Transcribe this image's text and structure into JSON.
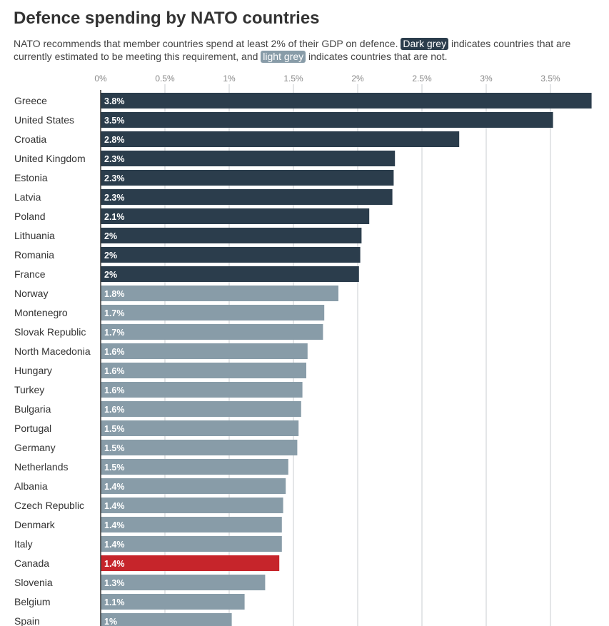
{
  "title": "Defence spending by NATO countries",
  "subtitle": {
    "part1": "NATO recommends that member countries spend at least 2% of their GDP on defence.",
    "dark_chip": "Dark grey",
    "part2": "indicates countries that are currently estimated to be meeting this requirement, and",
    "light_chip": "light grey",
    "part3": "indicates countries that are not."
  },
  "colors": {
    "dark": "#2b3d4c",
    "light": "#889ca8",
    "highlight": "#c6252b",
    "grid": "#c8cdd2",
    "axis": "#333333"
  },
  "chart_data": {
    "type": "bar",
    "orientation": "horizontal",
    "title": "Defence spending by NATO countries",
    "xlabel": "",
    "ylabel": "",
    "xlim": [
      0,
      3.8
    ],
    "x_ticks": [
      0,
      0.5,
      1,
      1.5,
      2,
      2.5,
      3,
      3.5
    ],
    "x_tick_labels": [
      "0%",
      "0.5%",
      "1%",
      "1.5%",
      "2%",
      "2.5%",
      "3%",
      "3.5%"
    ],
    "threshold": 2,
    "grid": true,
    "categories": [
      "Greece",
      "United States",
      "Croatia",
      "United Kingdom",
      "Estonia",
      "Latvia",
      "Poland",
      "Lithuania",
      "Romania",
      "France",
      "Norway",
      "Montenegro",
      "Slovak Republic",
      "North Macedonia",
      "Hungary",
      "Turkey",
      "Bulgaria",
      "Portugal",
      "Germany",
      "Netherlands",
      "Albania",
      "Czech Republic",
      "Denmark",
      "Italy",
      "Canada",
      "Slovenia",
      "Belgium",
      "Spain"
    ],
    "values": [
      3.82,
      3.52,
      2.79,
      2.29,
      2.28,
      2.27,
      2.09,
      2.03,
      2.02,
      2.01,
      1.85,
      1.74,
      1.73,
      1.61,
      1.6,
      1.57,
      1.56,
      1.54,
      1.53,
      1.46,
      1.44,
      1.42,
      1.41,
      1.41,
      1.39,
      1.28,
      1.12,
      1.02
    ],
    "value_labels": [
      "3.8%",
      "3.5%",
      "2.8%",
      "2.3%",
      "2.3%",
      "2.3%",
      "2.1%",
      "2%",
      "2%",
      "2%",
      "1.8%",
      "1.7%",
      "1.7%",
      "1.6%",
      "1.6%",
      "1.6%",
      "1.6%",
      "1.5%",
      "1.5%",
      "1.5%",
      "1.4%",
      "1.4%",
      "1.4%",
      "1.4%",
      "1.4%",
      "1.3%",
      "1.1%",
      "1%"
    ],
    "bar_group": [
      "dark",
      "dark",
      "dark",
      "dark",
      "dark",
      "dark",
      "dark",
      "dark",
      "dark",
      "dark",
      "light",
      "light",
      "light",
      "light",
      "light",
      "light",
      "light",
      "light",
      "light",
      "light",
      "light",
      "light",
      "light",
      "light",
      "highlight",
      "light",
      "light",
      "light"
    ]
  }
}
